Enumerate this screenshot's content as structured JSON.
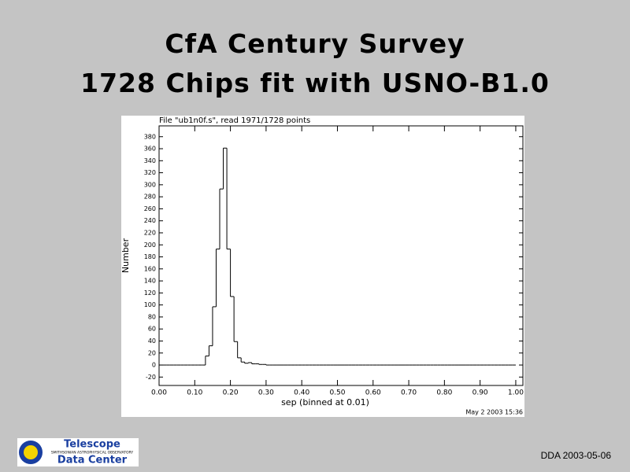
{
  "slide": {
    "title_lines": [
      "CfA Century Survey",
      "1728 Chips fit with USNO-B1.0"
    ],
    "footer": "DDA 2003-05-06",
    "logo": {
      "line1": "Telescope",
      "line2": "SMITHSONIAN ASTROPHYSICAL OBSERVATORY",
      "line3": "Data Center"
    }
  },
  "chart_data": {
    "type": "histogram",
    "title": "File \"ub1n0f.s\", read 1971/1728 points",
    "xlabel": "sep (binned at 0.01)",
    "ylabel": "Number",
    "footnote": "May  2 2003 15:36",
    "color": "#000000",
    "bins": [
      0,
      0.01,
      0.02,
      0.03,
      0.04,
      0.05,
      0.06,
      0.07,
      0.08,
      0.09,
      0.1,
      0.11,
      0.12,
      0.13,
      0.14,
      0.15,
      0.16,
      0.17,
      0.18,
      0.19,
      0.2,
      0.21,
      0.22,
      0.23,
      0.24,
      0.25,
      0.26,
      0.27,
      0.28,
      0.29,
      0.3,
      0.31,
      0.32,
      0.33,
      0.34,
      0.35,
      0.36,
      0.37,
      0.38,
      0.39,
      0.4,
      0.41,
      0.42,
      0.43,
      0.44,
      0.45,
      0.46,
      0.47,
      0.48,
      0.49,
      0.5,
      0.51,
      0.52,
      0.53,
      0.54,
      0.55,
      0.56,
      0.57,
      0.58,
      0.59,
      0.6,
      0.61,
      0.62,
      0.63,
      0.64,
      0.65,
      0.66,
      0.67,
      0.68,
      0.69,
      0.7,
      0.71,
      0.72,
      0.73,
      0.74,
      0.75,
      0.76,
      0.77,
      0.78,
      0.79,
      0.8,
      0.81,
      0.82,
      0.83,
      0.84,
      0.85,
      0.86,
      0.87,
      0.88,
      0.89,
      0.9,
      0.91,
      0.92,
      0.93,
      0.94,
      0.95,
      0.96,
      0.97,
      0.98,
      0.99,
      1
    ],
    "values": [
      0,
      0,
      0,
      0,
      0,
      0,
      0,
      0,
      0,
      0,
      0,
      0,
      0,
      15,
      32,
      97,
      193,
      293,
      361,
      193,
      114,
      39,
      12,
      5,
      3,
      4,
      2,
      2,
      1,
      1,
      0,
      0,
      0,
      0,
      0,
      0,
      0,
      0,
      0,
      0,
      0,
      0,
      0,
      0,
      0,
      0,
      0,
      0,
      0,
      0,
      0,
      0,
      0,
      0,
      0,
      0,
      0,
      0,
      0,
      0,
      0,
      0,
      0,
      0,
      0,
      0,
      0,
      0,
      0,
      0,
      0,
      0,
      0,
      0,
      0,
      0,
      0,
      0,
      0,
      0,
      0,
      0,
      0,
      0,
      0,
      0,
      0,
      0,
      0,
      0,
      0,
      0,
      0,
      0,
      0,
      0,
      0,
      0,
      0,
      0
    ],
    "xlim": [
      0,
      1.02
    ],
    "xticks": [
      {
        "value": 0,
        "label": "0.00"
      },
      {
        "value": 0.1,
        "label": "0.10"
      },
      {
        "value": 0.2,
        "label": "0.20"
      },
      {
        "value": 0.3,
        "label": "0.30"
      },
      {
        "value": 0.4,
        "label": "0.40"
      },
      {
        "value": 0.5,
        "label": "0.50"
      },
      {
        "value": 0.6,
        "label": "0.60"
      },
      {
        "value": 0.7,
        "label": "0.70"
      },
      {
        "value": 0.8,
        "label": "0.80"
      },
      {
        "value": 0.9,
        "label": "0.90"
      },
      {
        "value": 1,
        "label": "1.00"
      }
    ],
    "ylim": [
      -34,
      398
    ],
    "yticks": [
      -20,
      0,
      20,
      40,
      60,
      80,
      100,
      120,
      140,
      160,
      180,
      200,
      220,
      240,
      260,
      280,
      300,
      320,
      340,
      360,
      380
    ]
  }
}
